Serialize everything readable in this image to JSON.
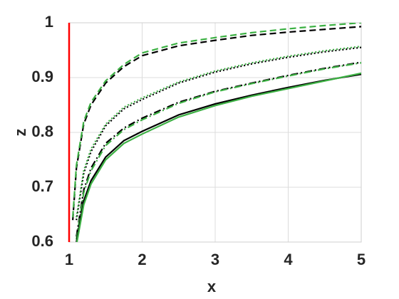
{
  "chart_data": {
    "type": "line",
    "x_label": "x",
    "y_label": "z",
    "x": [
      1.05,
      1.1,
      1.2,
      1.3,
      1.5,
      1.75,
      2,
      2.5,
      3,
      3.5,
      4,
      4.5,
      5
    ],
    "series": [
      {
        "color": "#000000",
        "style": "dashed",
        "values": [
          0.64,
          0.735,
          0.815,
          0.85,
          0.89,
          0.92,
          0.94,
          0.958,
          0.968,
          0.977,
          0.983,
          0.988,
          0.993
        ]
      },
      {
        "color": "#3cb043",
        "style": "dashed",
        "values": [
          0.645,
          0.74,
          0.82,
          0.855,
          0.894,
          0.924,
          0.945,
          0.963,
          0.973,
          0.982,
          0.989,
          0.995,
          1.0
        ]
      },
      {
        "color": "#000000",
        "style": "dotted",
        "values": [
          null,
          0.64,
          0.725,
          0.765,
          0.812,
          0.843,
          0.86,
          0.89,
          0.91,
          0.925,
          0.937,
          0.947,
          0.955
        ]
      },
      {
        "color": "#3cb043",
        "style": "dotted",
        "values": [
          null,
          0.645,
          0.73,
          0.77,
          0.815,
          0.846,
          0.863,
          0.892,
          0.912,
          0.927,
          0.939,
          0.949,
          0.957
        ]
      },
      {
        "color": "#000000",
        "style": "dashdot",
        "values": [
          null,
          0.61,
          0.695,
          0.735,
          0.78,
          0.808,
          0.826,
          0.855,
          0.875,
          0.89,
          0.904,
          0.917,
          0.928
        ]
      },
      {
        "color": "#3cb043",
        "style": "dashdot",
        "values": [
          null,
          0.605,
          0.69,
          0.73,
          0.776,
          0.805,
          0.823,
          0.853,
          0.874,
          0.889,
          0.903,
          0.916,
          0.927
        ]
      },
      {
        "color": "#000000",
        "style": "solid",
        "values": [
          null,
          0.6,
          0.675,
          0.712,
          0.755,
          0.785,
          0.802,
          0.832,
          0.852,
          0.868,
          0.882,
          0.895,
          0.906
        ]
      },
      {
        "color": "#3cb043",
        "style": "solid",
        "values": [
          null,
          0.595,
          0.668,
          0.706,
          0.75,
          0.78,
          0.797,
          0.828,
          0.849,
          0.866,
          0.88,
          0.894,
          0.908
        ]
      }
    ],
    "vline": {
      "x": 1,
      "color": "#ff0000"
    },
    "xlim": [
      1,
      5
    ],
    "ylim": [
      0.6,
      1
    ],
    "xticks": [
      1,
      2,
      3,
      4,
      5
    ],
    "yticks": [
      0.6,
      0.7,
      0.8,
      0.9,
      1
    ],
    "grid": true
  }
}
